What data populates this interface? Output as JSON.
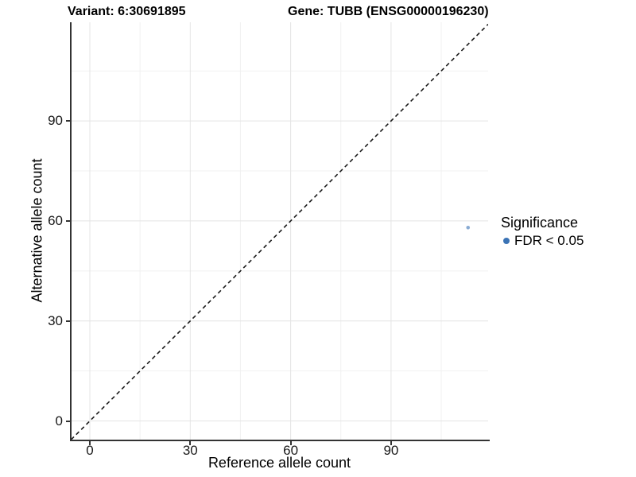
{
  "titles": {
    "variant": "Variant: 6:30691895",
    "gene": "Gene: TUBB (ENSG00000196230)"
  },
  "chart_data": {
    "type": "scatter",
    "title": "Variant: 6:30691895  |  Gene: TUBB (ENSG00000196230)",
    "xlabel": "Reference allele count",
    "ylabel": "Alternative allele count",
    "xlim": [
      -5.7,
      119.0
    ],
    "ylim": [
      -5.6,
      119.6
    ],
    "x_ticks": [
      0,
      30,
      60,
      90
    ],
    "y_ticks": [
      0,
      30,
      60,
      90
    ],
    "x_minor_ticks": [
      15,
      45,
      75,
      105
    ],
    "y_minor_ticks": [
      15,
      45,
      75,
      105
    ],
    "grid": "major+minor, very light on white panel",
    "reference_line": {
      "kind": "abline",
      "slope": 1,
      "intercept": 0,
      "style": "dashed",
      "color": "#1a1a1a"
    },
    "series": [
      {
        "name": "FDR < 0.05",
        "color": "#3B73B5",
        "points": [
          {
            "x": 113,
            "y": 58
          }
        ]
      }
    ],
    "legend": {
      "title": "Significance",
      "position": "right",
      "items": [
        {
          "label": "FDR < 0.05",
          "color": "#3B73B5"
        }
      ]
    }
  },
  "colors": {
    "point_blue": "#3B73B5",
    "grid_major": "#E4E4E4",
    "grid_minor": "#F1F1F1",
    "axis_line": "#333333",
    "dashed_line": "#1a1a1a",
    "background": "#FFFFFF"
  }
}
